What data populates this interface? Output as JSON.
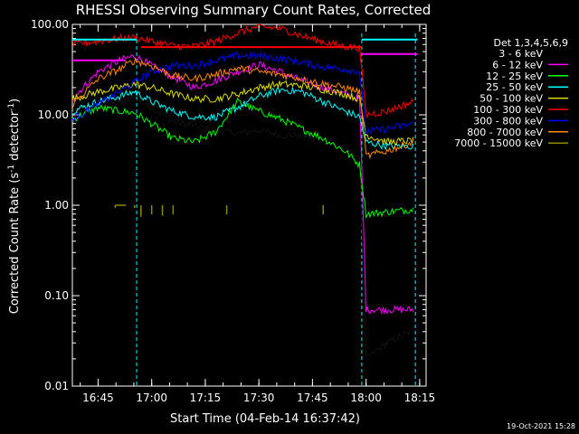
{
  "chart_data": {
    "type": "line",
    "title": "RHESSI Observing Summary Count Rates, Corrected",
    "xlabel": "Start Time (04-Feb-14 16:37:42)",
    "ylabel_main": "Corrected Count Rate (s",
    "ylabel_sup1": "-1",
    "ylabel_mid": " detector",
    "ylabel_sup2": "-1",
    "ylabel_end": ")",
    "y_scale": "log",
    "ylim": [
      0.01,
      100
    ],
    "xlim_minutes": [
      16.63,
      18.28
    ],
    "y_ticks": [
      {
        "value": 100,
        "label": "100.00"
      },
      {
        "value": 10,
        "label": "10.00"
      },
      {
        "value": 1,
        "label": "1.00"
      },
      {
        "value": 0.1,
        "label": "0.10"
      },
      {
        "value": 0.01,
        "label": "0.01"
      }
    ],
    "x_ticks": [
      {
        "value": 16.75,
        "label": "16:45"
      },
      {
        "value": 17.0,
        "label": "17:00"
      },
      {
        "value": 17.25,
        "label": "17:15"
      },
      {
        "value": 17.5,
        "label": "17:30"
      },
      {
        "value": 17.75,
        "label": "17:45"
      },
      {
        "value": 18.0,
        "label": "18:00"
      },
      {
        "value": 18.25,
        "label": "18:15"
      }
    ],
    "attenuator_lines": [
      16.93,
      17.98,
      18.23
    ],
    "legend_title": "Det 1,3,4,5,6,9",
    "legend_placement": "right",
    "series": [
      {
        "name": "3 - 6 keV",
        "color": "#000000",
        "x": [
          16.63,
          16.75,
          16.85,
          16.92,
          17.0,
          17.1,
          17.2,
          17.3,
          17.4,
          17.5,
          17.6,
          17.7,
          17.8,
          17.9,
          17.97,
          18.0,
          18.05,
          18.1,
          18.15,
          18.22
        ],
        "y": [
          10.5,
          12.8,
          13.2,
          15.5,
          12.0,
          8.5,
          7.5,
          6.8,
          6.2,
          6.8,
          6.0,
          5.8,
          5.2,
          4.2,
          3.5,
          0.02,
          0.025,
          0.03,
          0.035,
          0.04
        ]
      },
      {
        "name": "6 - 12 keV",
        "color": "#ff00ff",
        "x": [
          16.63,
          16.75,
          16.85,
          16.92,
          17.0,
          17.1,
          17.2,
          17.3,
          17.4,
          17.5,
          17.6,
          17.7,
          17.8,
          17.9,
          17.97,
          18.0,
          18.22
        ],
        "y": [
          15.0,
          30.0,
          40.0,
          45.0,
          35.0,
          26.0,
          20.0,
          24.0,
          30.0,
          36.0,
          30.0,
          24.0,
          20.0,
          17.0,
          15.0,
          0.07,
          0.07
        ]
      },
      {
        "name": "12 - 25 keV",
        "color": "#00ff00",
        "x": [
          16.63,
          16.75,
          16.85,
          16.92,
          17.0,
          17.1,
          17.2,
          17.3,
          17.4,
          17.5,
          17.6,
          17.7,
          17.8,
          17.9,
          17.97,
          18.0,
          18.22
        ],
        "y": [
          9.0,
          12.0,
          11.0,
          10.5,
          8.0,
          5.5,
          5.0,
          6.5,
          14.0,
          11.0,
          9.0,
          7.0,
          5.5,
          4.0,
          2.8,
          0.8,
          0.9
        ]
      },
      {
        "name": "25 - 50 keV",
        "color": "#00ffff",
        "x": [
          16.63,
          16.75,
          16.85,
          16.92,
          17.0,
          17.1,
          17.2,
          17.3,
          17.4,
          17.5,
          17.6,
          17.7,
          17.8,
          17.9,
          17.97,
          18.0,
          18.1,
          18.22
        ],
        "y": [
          11.0,
          14.0,
          16.0,
          18.0,
          14.0,
          11.0,
          9.5,
          9.5,
          12.0,
          16.0,
          19.0,
          18.0,
          14.0,
          11.0,
          9.5,
          5.0,
          4.5,
          4.5
        ]
      },
      {
        "name": "50 - 100 keV",
        "color": "#dddd00",
        "x": [
          16.63,
          16.75,
          16.85,
          16.92,
          17.0,
          17.1,
          17.2,
          17.3,
          17.4,
          17.5,
          17.6,
          17.7,
          17.8,
          17.9,
          17.97,
          18.0,
          18.1,
          18.22
        ],
        "y": [
          15.0,
          18.0,
          20.0,
          22.0,
          20.0,
          17.0,
          15.0,
          15.0,
          17.0,
          20.0,
          22.0,
          21.0,
          19.0,
          17.0,
          15.0,
          6.0,
          5.0,
          5.2
        ]
      },
      {
        "name": "100 - 300 keV",
        "color": "#ff0000",
        "x": [
          16.63,
          16.75,
          16.85,
          16.92,
          17.0,
          17.1,
          17.2,
          17.3,
          17.4,
          17.5,
          17.6,
          17.7,
          17.8,
          17.9,
          17.97,
          18.0,
          18.1,
          18.22
        ],
        "y": [
          60.0,
          65.0,
          70.0,
          72.0,
          65.0,
          58.0,
          57.0,
          65.0,
          80.0,
          95.0,
          90.0,
          75.0,
          64.0,
          57.0,
          55.0,
          10.0,
          11.0,
          14.0
        ]
      },
      {
        "name": "300 - 800 keV",
        "color": "#0000ff",
        "x": [
          16.63,
          16.75,
          16.85,
          16.92,
          17.0,
          17.1,
          17.2,
          17.3,
          17.4,
          17.5,
          17.6,
          17.7,
          17.8,
          17.9,
          17.97,
          18.0,
          18.1,
          18.22
        ],
        "y": [
          9.0,
          13.0,
          18.0,
          23.0,
          30.0,
          35.0,
          35.0,
          40.0,
          45.0,
          45.0,
          42.0,
          38.0,
          34.0,
          32.0,
          30.0,
          6.5,
          7.0,
          8.0
        ]
      },
      {
        "name": "800 - 7000 keV",
        "color": "#ff8800",
        "x": [
          16.63,
          16.75,
          16.85,
          16.92,
          17.0,
          17.1,
          17.2,
          17.3,
          17.4,
          17.5,
          17.6,
          17.7,
          17.8,
          17.9,
          17.97,
          18.0,
          18.1,
          18.22
        ],
        "y": [
          13.0,
          25.0,
          32.0,
          40.0,
          35.0,
          27.0,
          25.0,
          28.0,
          33.0,
          30.0,
          28.0,
          25.0,
          22.0,
          20.0,
          18.0,
          3.5,
          4.0,
          5.0
        ]
      },
      {
        "name": "7000 - 15000 keV",
        "color": "#8b8b00",
        "x": [
          16.83,
          16.92,
          16.95,
          17.0,
          17.05,
          17.1,
          17.35,
          17.8
        ],
        "y": [
          1.0,
          1.0,
          0.8,
          0.85,
          0.82,
          0.85,
          0.85,
          0.85
        ]
      }
    ]
  },
  "timestamp": "19-Oct-2021 15:28"
}
